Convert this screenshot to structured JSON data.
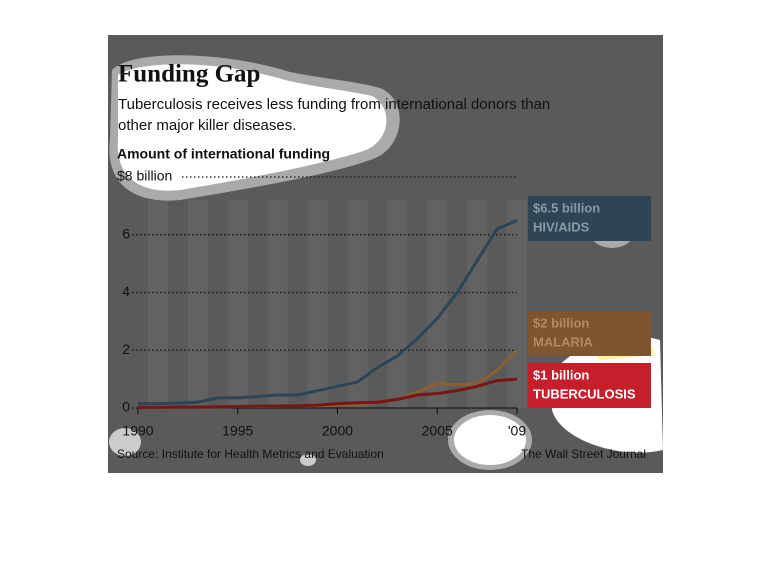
{
  "chart_data": {
    "type": "line",
    "title": "Funding Gap",
    "subtitle": "Tuberculosis receives less funding from international donors than other major killer diseases.",
    "y_label": "Amount of international funding",
    "source": "Source: Institute for Health Metrics and Evaluation",
    "credit": "The Wall Street Journal",
    "x": [
      1990,
      1991,
      1992,
      1993,
      1994,
      1995,
      1996,
      1997,
      1998,
      1999,
      2000,
      2001,
      2002,
      2003,
      2004,
      2005,
      2006,
      2007,
      2008,
      2009
    ],
    "xlim": [
      1990,
      2009
    ],
    "xticks": [
      1990,
      1995,
      2000,
      2005,
      {
        "value": 2009,
        "label": "'09"
      }
    ],
    "ylim": [
      0,
      8
    ],
    "yticks": [
      0,
      2,
      4,
      6,
      {
        "value": 8,
        "label": "$8 billion"
      }
    ],
    "grid": true,
    "series": [
      {
        "name": "HIV/AIDS",
        "color": "#2b4557",
        "end_label": "$6.5 billion",
        "values": [
          0.15,
          0.15,
          0.17,
          0.2,
          0.35,
          0.35,
          0.4,
          0.45,
          0.45,
          0.6,
          0.75,
          0.9,
          1.4,
          1.8,
          2.4,
          3.1,
          4.0,
          5.1,
          6.2,
          6.5
        ]
      },
      {
        "name": "MALARIA",
        "color": "#8c5f33",
        "end_label": "$2 billion",
        "values": [
          0.02,
          0.02,
          0.03,
          0.03,
          0.04,
          0.05,
          0.05,
          0.06,
          0.07,
          0.08,
          0.1,
          0.12,
          0.2,
          0.3,
          0.55,
          0.85,
          0.8,
          0.85,
          1.3,
          2.0
        ]
      },
      {
        "name": "TUBERCULOSIS",
        "color": "#7a1515",
        "end_label": "$1 billion",
        "values": [
          0.02,
          0.02,
          0.03,
          0.03,
          0.04,
          0.05,
          0.06,
          0.07,
          0.08,
          0.1,
          0.15,
          0.18,
          0.2,
          0.3,
          0.45,
          0.5,
          0.6,
          0.75,
          0.95,
          1.0
        ]
      }
    ]
  }
}
